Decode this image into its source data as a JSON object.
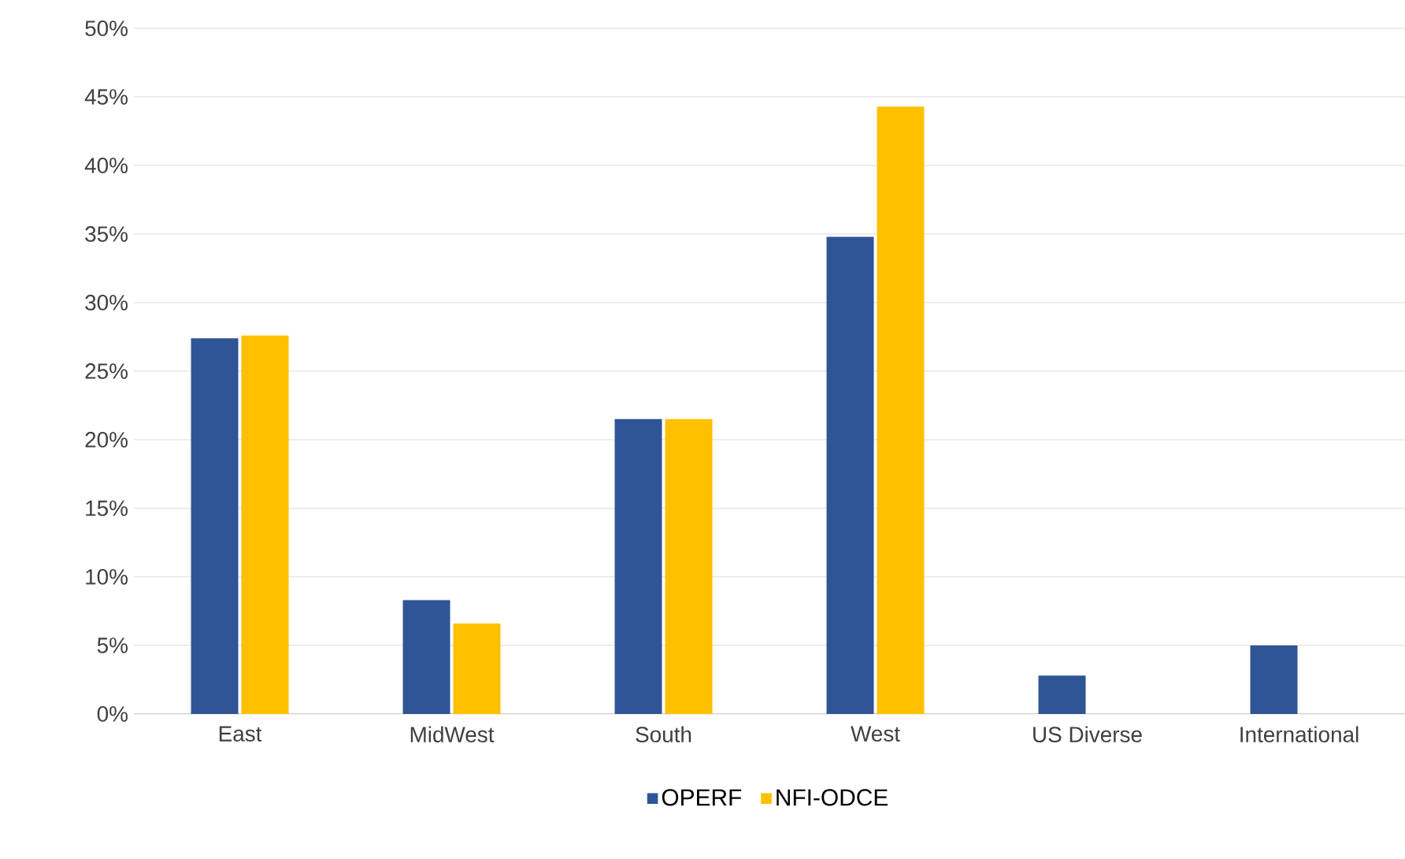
{
  "chart_data": {
    "type": "bar",
    "categories": [
      "East",
      "MidWest",
      "South",
      "West",
      "US Diverse",
      "International"
    ],
    "series": [
      {
        "name": "OPERF",
        "color": "#2f5597",
        "values": [
          27.4,
          8.3,
          21.5,
          34.8,
          2.8,
          5.0
        ]
      },
      {
        "name": "NFI-ODCE",
        "color": "#ffc000",
        "values": [
          27.6,
          6.6,
          21.5,
          44.3,
          null,
          null
        ]
      }
    ],
    "ylim": [
      0,
      50
    ],
    "yticks": [
      {
        "value": 0,
        "label": "0%"
      },
      {
        "value": 5,
        "label": "5%"
      },
      {
        "value": 10,
        "label": "10%"
      },
      {
        "value": 15,
        "label": "15%"
      },
      {
        "value": 20,
        "label": "20%"
      },
      {
        "value": 25,
        "label": "25%"
      },
      {
        "value": 30,
        "label": "30%"
      },
      {
        "value": 35,
        "label": "35%"
      },
      {
        "value": 40,
        "label": "40%"
      },
      {
        "value": 45,
        "label": "45%"
      },
      {
        "value": 50,
        "label": "50%"
      }
    ],
    "grid": "y",
    "legend": "bottom"
  }
}
